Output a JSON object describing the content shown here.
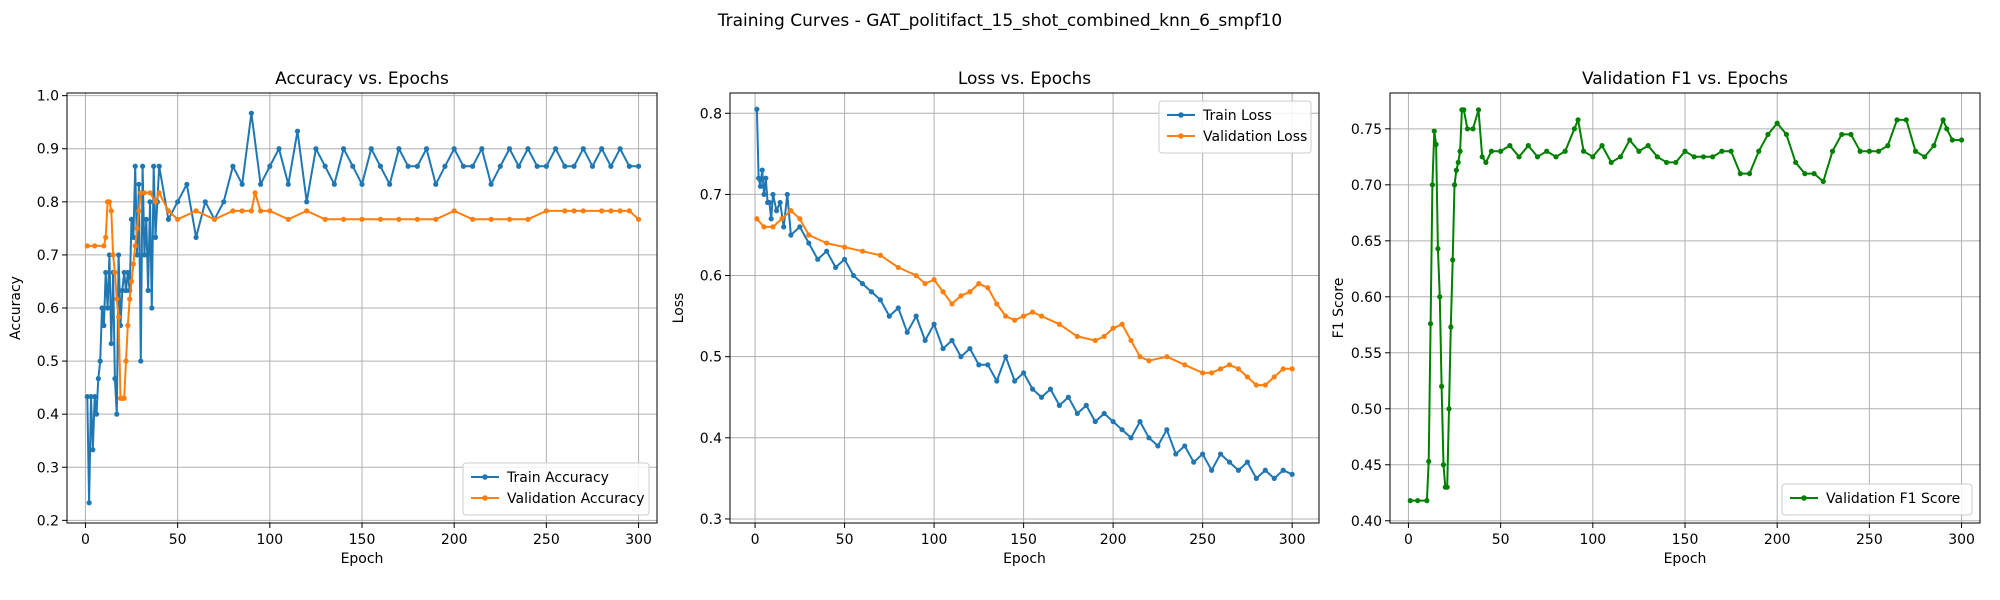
{
  "figure": {
    "suptitle": "Training Curves - GAT_politifact_15_shot_combined_knn_6_smpf10"
  },
  "chart_data": [
    {
      "type": "line",
      "title": "Accuracy vs. Epochs",
      "xlabel": "Epoch",
      "ylabel": "Accuracy",
      "xlim": [
        -10,
        310
      ],
      "ylim": [
        0.195,
        1.005
      ],
      "xticks": [
        0,
        50,
        100,
        150,
        200,
        250,
        300
      ],
      "yticks": [
        0.2,
        0.3,
        0.4,
        0.5,
        0.6,
        0.7,
        0.8,
        0.9,
        1.0
      ],
      "ytick_labels": [
        "0.2",
        "0.3",
        "0.4",
        "0.5",
        "0.6",
        "0.7",
        "0.8",
        "0.9",
        "1.0"
      ],
      "grid": true,
      "legend_position": "lower-right",
      "series": [
        {
          "name": "Train Accuracy",
          "color": "#1f77b4",
          "x": [
            1,
            2,
            3,
            4,
            5,
            6,
            7,
            8,
            9,
            10,
            11,
            12,
            13,
            14,
            15,
            16,
            17,
            18,
            19,
            20,
            21,
            22,
            23,
            24,
            25,
            26,
            27,
            28,
            29,
            30,
            31,
            32,
            33,
            34,
            35,
            36,
            37,
            38,
            39,
            40,
            45,
            50,
            55,
            60,
            65,
            70,
            75,
            80,
            85,
            90,
            95,
            100,
            105,
            110,
            115,
            120,
            125,
            130,
            135,
            140,
            145,
            150,
            155,
            160,
            165,
            170,
            175,
            180,
            185,
            190,
            195,
            200,
            205,
            210,
            215,
            220,
            225,
            230,
            235,
            240,
            245,
            250,
            255,
            260,
            265,
            270,
            275,
            280,
            285,
            290,
            295,
            300
          ],
          "y": [
            0.433,
            0.233,
            0.433,
            0.333,
            0.433,
            0.4,
            0.467,
            0.5,
            0.6,
            0.567,
            0.667,
            0.6,
            0.7,
            0.533,
            0.667,
            0.467,
            0.4,
            0.7,
            0.567,
            0.633,
            0.667,
            0.633,
            0.667,
            0.633,
            0.767,
            0.733,
            0.867,
            0.7,
            0.833,
            0.5,
            0.867,
            0.7,
            0.767,
            0.633,
            0.8,
            0.6,
            0.867,
            0.733,
            0.8,
            0.867,
            0.767,
            0.8,
            0.833,
            0.733,
            0.8,
            0.767,
            0.8,
            0.867,
            0.833,
            0.967,
            0.833,
            0.867,
            0.9,
            0.833,
            0.933,
            0.8,
            0.9,
            0.867,
            0.833,
            0.9,
            0.867,
            0.833,
            0.9,
            0.867,
            0.833,
            0.9,
            0.867,
            0.867,
            0.9,
            0.833,
            0.867,
            0.9,
            0.867,
            0.867,
            0.9,
            0.833,
            0.867,
            0.9,
            0.867,
            0.9,
            0.867,
            0.867,
            0.9,
            0.867,
            0.867,
            0.9,
            0.867,
            0.9,
            0.867,
            0.9,
            0.867,
            0.867
          ]
        },
        {
          "name": "Validation Accuracy",
          "color": "#ff7f0e",
          "x": [
            1,
            5,
            10,
            11,
            12,
            13,
            14,
            15,
            16,
            17,
            18,
            19,
            20,
            21,
            22,
            23,
            24,
            25,
            26,
            27,
            28,
            29,
            30,
            32,
            35,
            38,
            40,
            45,
            50,
            60,
            70,
            80,
            85,
            90,
            92,
            95,
            100,
            110,
            120,
            130,
            140,
            150,
            160,
            170,
            180,
            190,
            200,
            210,
            220,
            230,
            240,
            250,
            260,
            265,
            270,
            280,
            285,
            290,
            295,
            300
          ],
          "y": [
            0.717,
            0.717,
            0.717,
            0.733,
            0.8,
            0.8,
            0.783,
            0.7,
            0.667,
            0.617,
            0.583,
            0.43,
            0.43,
            0.43,
            0.5,
            0.567,
            0.617,
            0.65,
            0.683,
            0.717,
            0.75,
            0.783,
            0.817,
            0.817,
            0.817,
            0.8,
            0.817,
            0.783,
            0.767,
            0.783,
            0.767,
            0.783,
            0.783,
            0.783,
            0.817,
            0.783,
            0.783,
            0.767,
            0.783,
            0.767,
            0.767,
            0.767,
            0.767,
            0.767,
            0.767,
            0.767,
            0.783,
            0.767,
            0.767,
            0.767,
            0.767,
            0.783,
            0.783,
            0.783,
            0.783,
            0.783,
            0.783,
            0.783,
            0.783,
            0.767
          ]
        }
      ]
    },
    {
      "type": "line",
      "title": "Loss vs. Epochs",
      "xlabel": "Epoch",
      "ylabel": "Loss",
      "xlim": [
        -14,
        315
      ],
      "ylim": [
        0.295,
        0.825
      ],
      "xticks": [
        0,
        50,
        100,
        150,
        200,
        250,
        300
      ],
      "yticks": [
        0.3,
        0.4,
        0.5,
        0.6,
        0.7,
        0.8
      ],
      "ytick_labels": [
        "0.3",
        "0.4",
        "0.5",
        "0.6",
        "0.7",
        "0.8"
      ],
      "grid": true,
      "legend_position": "upper-right",
      "series": [
        {
          "name": "Train Loss",
          "color": "#1f77b4",
          "x": [
            1,
            2,
            3,
            4,
            5,
            6,
            7,
            8,
            9,
            10,
            12,
            14,
            16,
            18,
            20,
            25,
            30,
            35,
            40,
            45,
            50,
            55,
            60,
            65,
            70,
            75,
            80,
            85,
            90,
            95,
            100,
            105,
            110,
            115,
            120,
            125,
            130,
            135,
            140,
            145,
            150,
            155,
            160,
            165,
            170,
            175,
            180,
            185,
            190,
            195,
            200,
            205,
            210,
            215,
            220,
            225,
            230,
            235,
            240,
            245,
            250,
            255,
            260,
            265,
            270,
            275,
            280,
            285,
            290,
            295,
            300
          ],
          "y": [
            0.805,
            0.72,
            0.71,
            0.73,
            0.7,
            0.72,
            0.69,
            0.69,
            0.67,
            0.7,
            0.68,
            0.69,
            0.66,
            0.7,
            0.65,
            0.66,
            0.64,
            0.62,
            0.63,
            0.61,
            0.62,
            0.6,
            0.59,
            0.58,
            0.57,
            0.55,
            0.56,
            0.53,
            0.55,
            0.52,
            0.54,
            0.51,
            0.52,
            0.5,
            0.51,
            0.49,
            0.49,
            0.47,
            0.5,
            0.47,
            0.48,
            0.46,
            0.45,
            0.46,
            0.44,
            0.45,
            0.43,
            0.44,
            0.42,
            0.43,
            0.42,
            0.41,
            0.4,
            0.42,
            0.4,
            0.39,
            0.41,
            0.38,
            0.39,
            0.37,
            0.38,
            0.36,
            0.38,
            0.37,
            0.36,
            0.37,
            0.35,
            0.36,
            0.35,
            0.36,
            0.355
          ]
        },
        {
          "name": "Validation Loss",
          "color": "#ff7f0e",
          "x": [
            1,
            5,
            10,
            15,
            20,
            25,
            30,
            40,
            50,
            60,
            70,
            80,
            90,
            95,
            100,
            105,
            110,
            115,
            120,
            125,
            130,
            135,
            140,
            145,
            150,
            155,
            160,
            170,
            180,
            190,
            195,
            200,
            205,
            210,
            215,
            220,
            230,
            240,
            250,
            255,
            260,
            265,
            270,
            275,
            280,
            285,
            290,
            295,
            300
          ],
          "y": [
            0.67,
            0.66,
            0.66,
            0.67,
            0.68,
            0.67,
            0.65,
            0.64,
            0.635,
            0.63,
            0.625,
            0.61,
            0.6,
            0.59,
            0.595,
            0.58,
            0.565,
            0.575,
            0.58,
            0.59,
            0.585,
            0.565,
            0.55,
            0.545,
            0.55,
            0.555,
            0.55,
            0.54,
            0.525,
            0.52,
            0.525,
            0.535,
            0.54,
            0.52,
            0.5,
            0.495,
            0.5,
            0.49,
            0.48,
            0.48,
            0.485,
            0.49,
            0.485,
            0.475,
            0.465,
            0.465,
            0.475,
            0.485,
            0.485
          ]
        }
      ]
    },
    {
      "type": "line",
      "title": "Validation F1 vs. Epochs",
      "xlabel": "Epoch",
      "ylabel": "F1 Score",
      "xlim": [
        -10,
        310
      ],
      "ylim": [
        0.398,
        0.782
      ],
      "xticks": [
        0,
        50,
        100,
        150,
        200,
        250,
        300
      ],
      "yticks": [
        0.4,
        0.45,
        0.5,
        0.55,
        0.6,
        0.65,
        0.7,
        0.75
      ],
      "ytick_labels": [
        "0.40",
        "0.45",
        "0.50",
        "0.55",
        "0.60",
        "0.65",
        "0.70",
        "0.75"
      ],
      "grid": true,
      "legend_position": "lower-right",
      "series": [
        {
          "name": "Validation F1 Score",
          "color": "#008000",
          "x": [
            1,
            5,
            10,
            11,
            12,
            13,
            14,
            15,
            16,
            17,
            18,
            19,
            20,
            21,
            22,
            23,
            24,
            25,
            26,
            27,
            28,
            29,
            30,
            32,
            35,
            38,
            40,
            42,
            45,
            50,
            55,
            60,
            65,
            70,
            75,
            80,
            85,
            90,
            92,
            95,
            100,
            105,
            110,
            115,
            120,
            125,
            130,
            135,
            140,
            145,
            150,
            155,
            160,
            165,
            170,
            175,
            180,
            185,
            190,
            195,
            200,
            205,
            210,
            215,
            220,
            225,
            230,
            235,
            240,
            245,
            250,
            255,
            260,
            265,
            270,
            275,
            280,
            285,
            290,
            292,
            295,
            300
          ],
          "y": [
            0.418,
            0.418,
            0.418,
            0.453,
            0.576,
            0.7,
            0.748,
            0.736,
            0.643,
            0.6,
            0.52,
            0.45,
            0.43,
            0.43,
            0.5,
            0.573,
            0.633,
            0.7,
            0.713,
            0.72,
            0.73,
            0.767,
            0.767,
            0.75,
            0.75,
            0.767,
            0.725,
            0.72,
            0.73,
            0.73,
            0.735,
            0.725,
            0.735,
            0.725,
            0.73,
            0.725,
            0.73,
            0.75,
            0.758,
            0.73,
            0.725,
            0.735,
            0.72,
            0.725,
            0.74,
            0.73,
            0.735,
            0.725,
            0.72,
            0.72,
            0.73,
            0.725,
            0.725,
            0.725,
            0.73,
            0.73,
            0.71,
            0.71,
            0.73,
            0.745,
            0.755,
            0.745,
            0.72,
            0.71,
            0.71,
            0.703,
            0.73,
            0.745,
            0.745,
            0.73,
            0.73,
            0.73,
            0.735,
            0.758,
            0.758,
            0.73,
            0.725,
            0.735,
            0.758,
            0.75,
            0.74,
            0.74
          ]
        }
      ]
    }
  ]
}
